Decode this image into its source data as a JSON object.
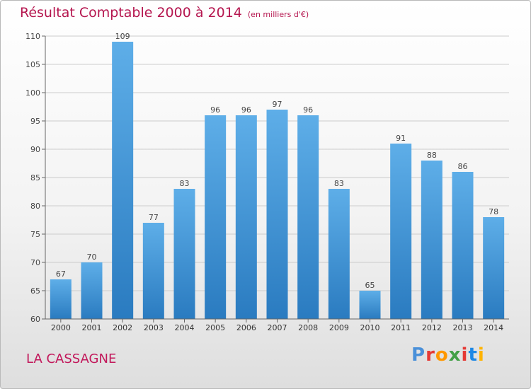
{
  "page": {
    "title": "Résultat Comptable 2000 à 2014",
    "subtitle": "(en milliers d'€)",
    "location": "LA CASSAGNE",
    "logo": {
      "letters": [
        "P",
        "r",
        "o",
        "x",
        "i",
        "t",
        "i"
      ],
      "colors": [
        "#4a90d9",
        "#e53935",
        "#ff9800",
        "#43a047",
        "#e53935",
        "#1e88e5",
        "#ffb300"
      ]
    }
  },
  "chart_data": {
    "type": "bar",
    "title": "Résultat Comptable 2000 à 2014",
    "subtitle": "(en milliers d'€)",
    "xlabel": "",
    "ylabel": "",
    "categories": [
      "2000",
      "2001",
      "2002",
      "2003",
      "2004",
      "2005",
      "2006",
      "2007",
      "2008",
      "2009",
      "2010",
      "2011",
      "2012",
      "2013",
      "2014"
    ],
    "values": [
      67,
      70,
      109,
      77,
      83,
      96,
      96,
      97,
      96,
      83,
      65,
      91,
      88,
      86,
      78
    ],
    "ylim": [
      60,
      110
    ],
    "yticks": [
      60,
      65,
      70,
      75,
      80,
      85,
      90,
      95,
      100,
      105,
      110
    ],
    "grid": true,
    "colors": {
      "bar_top": "#5eaee8",
      "bar_bottom": "#2a7bc0",
      "grid": "#cccccc",
      "title": "#b5164f"
    }
  }
}
